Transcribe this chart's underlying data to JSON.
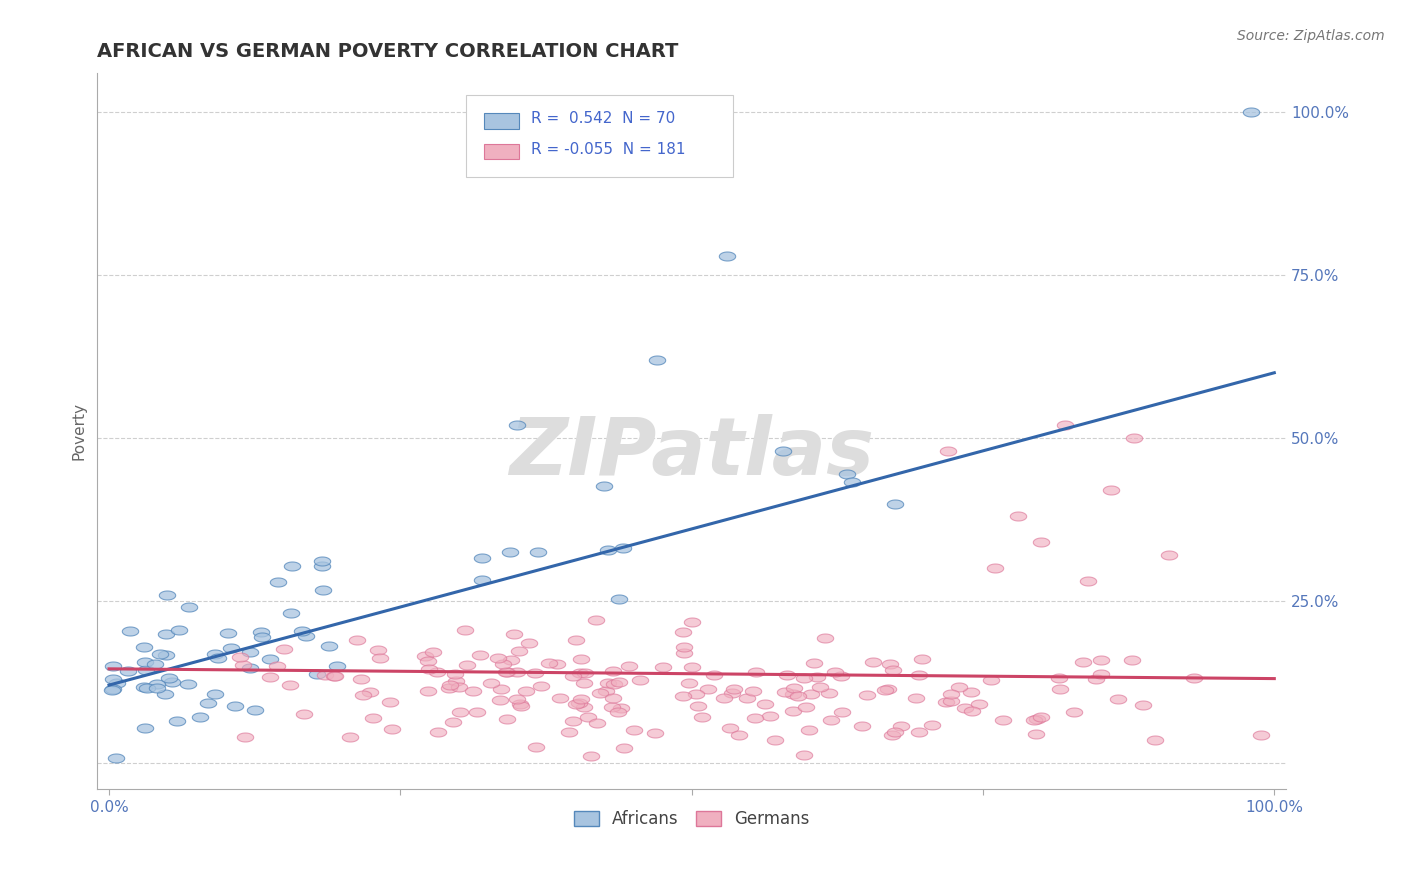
{
  "title": "AFRICAN VS GERMAN POVERTY CORRELATION CHART",
  "source": "Source: ZipAtlas.com",
  "ylabel": "Poverty",
  "african_color": "#a8c4e0",
  "african_edge": "#5588bb",
  "african_line_color": "#3366aa",
  "german_color": "#f0b0c0",
  "german_edge": "#dd7799",
  "german_line_color": "#cc4466",
  "african_R": 0.542,
  "african_N": 70,
  "german_R": -0.055,
  "german_N": 181,
  "background_color": "#ffffff",
  "grid_color": "#bbbbbb",
  "tick_color": "#5577bb",
  "title_color": "#333333",
  "source_color": "#777777",
  "legend_text_color": "#4466cc",
  "watermark_color": "#dddddd"
}
